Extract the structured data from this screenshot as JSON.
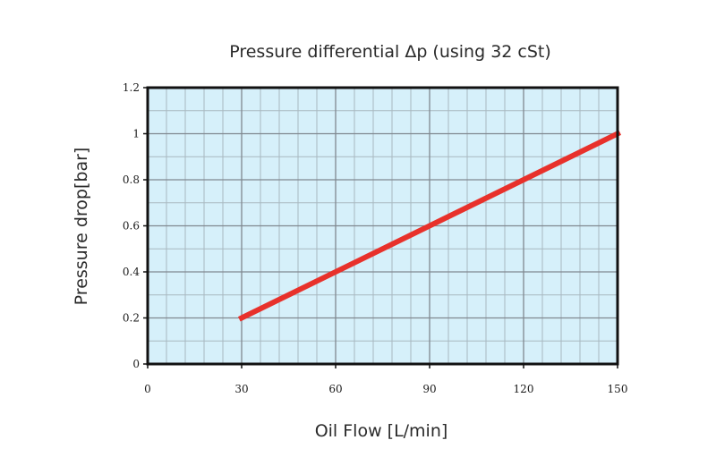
{
  "chart_data": {
    "type": "line",
    "title": "Pressure differential Δp (using 32 cSt)",
    "xlabel": "Oil Flow [L/min]",
    "ylabel": "Pressure drop[bar]",
    "xlim": [
      0,
      150
    ],
    "ylim": [
      0,
      1.2
    ],
    "x_ticks": [
      0,
      30,
      60,
      90,
      120,
      150
    ],
    "x_tick_labels": [
      "0",
      "30",
      "60",
      "90",
      "120",
      "150"
    ],
    "y_ticks": [
      0,
      0.2,
      0.4,
      0.6,
      0.8,
      1,
      1.2
    ],
    "y_tick_labels": [
      "0",
      "0.2",
      "0.4",
      "0.6",
      "0.8",
      "1",
      "1.2"
    ],
    "x_minor_step": 6,
    "y_minor_step": 0.1,
    "grid": true,
    "legend": "none",
    "series": [
      {
        "x": [
          30,
          150
        ],
        "values": [
          0.2,
          1.0
        ],
        "color": "#e8312b"
      }
    ],
    "colors": {
      "plot_background": "#d6f0fa",
      "grid_minor": "#a8b8c0",
      "grid_major": "#808890",
      "frame": "#111111"
    }
  }
}
